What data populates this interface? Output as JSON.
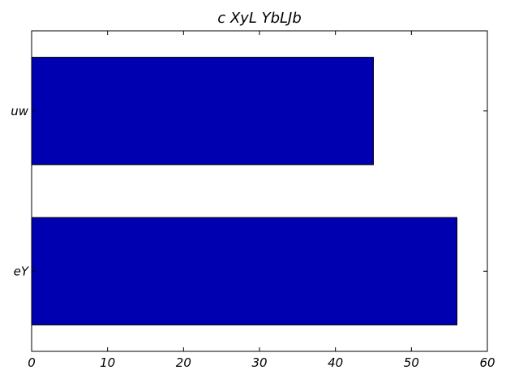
{
  "chart_data": {
    "type": "bar",
    "orientation": "horizontal",
    "title": "c XyL YbLJb",
    "categories": [
      "uw",
      "eY"
    ],
    "values": [
      45,
      56
    ],
    "xlim": [
      0,
      60
    ],
    "x_ticks": [
      0,
      10,
      20,
      30,
      40,
      50,
      60
    ],
    "xlabel": "",
    "ylabel": "",
    "grid": false,
    "legend": "none",
    "colors": {
      "bar": "#0000b0",
      "edge": "#000000",
      "axes": "#000000",
      "background": "#ffffff"
    }
  }
}
